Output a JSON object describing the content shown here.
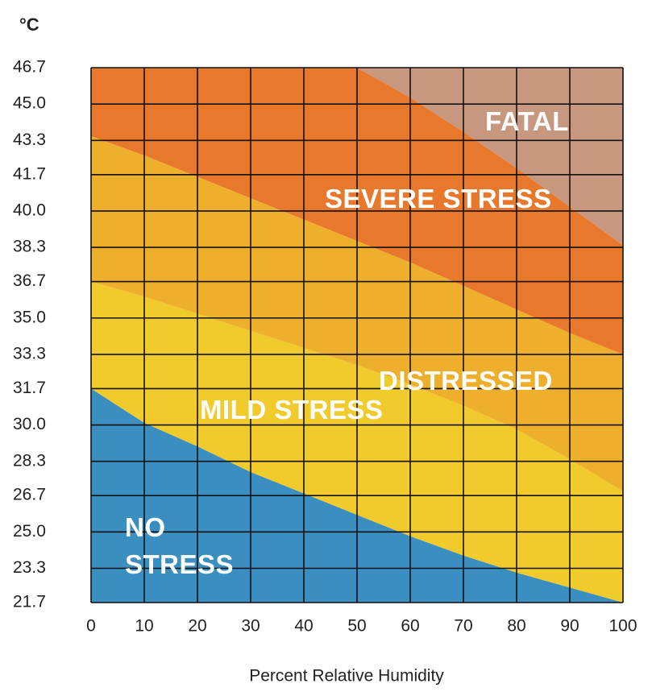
{
  "chart_data": {
    "type": "zones",
    "y_unit": "°C",
    "x_label": "Percent Relative Humidity",
    "x": [
      0,
      10,
      20,
      30,
      40,
      50,
      60,
      70,
      80,
      90,
      100
    ],
    "series": [
      {
        "name": "NO STRESS",
        "color": "#3b8ec0",
        "values": [
          31.7,
          30.1,
          29.0,
          27.8,
          26.8,
          25.8,
          24.8,
          23.9,
          23.1,
          22.4,
          21.7
        ]
      },
      {
        "name": "MILD STRESS",
        "color": "#f1ca2c",
        "values": [
          36.7,
          36.0,
          35.2,
          34.4,
          33.6,
          32.8,
          31.9,
          30.9,
          29.8,
          28.4,
          26.9
        ]
      },
      {
        "name": "DISTRESSED",
        "color": "#edaf2c",
        "values": [
          43.5,
          42.6,
          41.6,
          40.6,
          39.6,
          38.6,
          37.6,
          36.5,
          35.4,
          34.3,
          33.3
        ]
      },
      {
        "name": "SEVERE STRESS",
        "color": "#e8782c",
        "values": [
          null,
          null,
          null,
          null,
          null,
          46.7,
          45.3,
          43.7,
          42.0,
          40.2,
          38.4
        ]
      },
      {
        "name": "FATAL",
        "color": "#c8977f"
      }
    ],
    "xlim": [
      0,
      100
    ],
    "xticks": [
      0,
      10,
      20,
      30,
      40,
      50,
      60,
      70,
      80,
      90,
      100
    ],
    "ylim": [
      21.7,
      46.7
    ],
    "yticks": [
      46.7,
      {
        "value": 45,
        "label": "45.0"
      },
      43.3,
      41.7,
      {
        "value": 40,
        "label": "40.0"
      },
      38.3,
      36.7,
      {
        "value": 35,
        "label": "35.0"
      },
      33.3,
      31.7,
      {
        "value": 30,
        "label": "30.0"
      },
      28.3,
      26.7,
      {
        "value": 25,
        "label": "25.0"
      },
      23.3,
      21.7
    ],
    "grid": true
  }
}
